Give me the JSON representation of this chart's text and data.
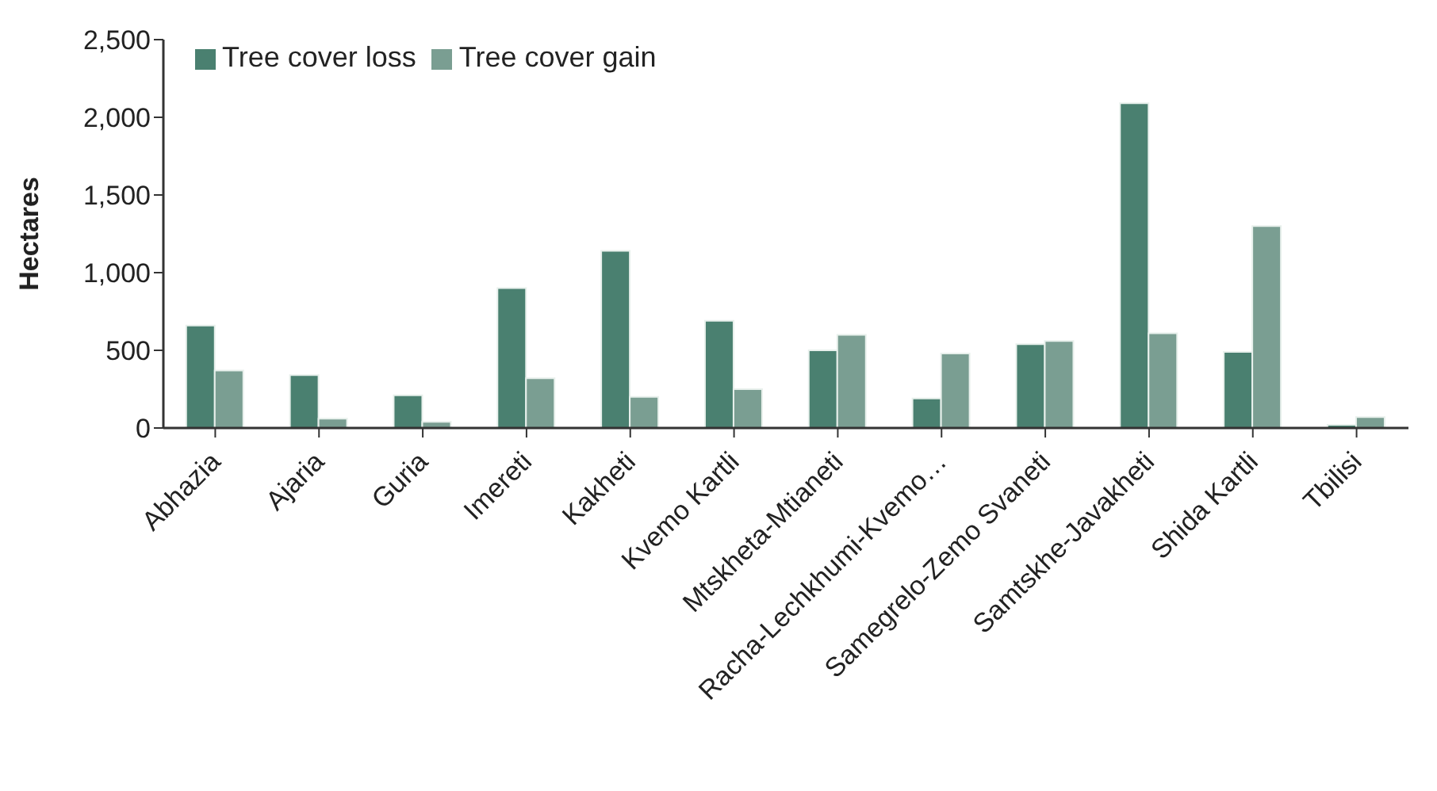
{
  "chart_data": {
    "type": "bar",
    "ylabel": "Hectares",
    "categories": [
      "Abhazia",
      "Ajaria",
      "Guria",
      "Imereti",
      "Kakheti",
      "Kvemo Kartli",
      "Mtskheta-Mtianeti",
      "Racha-Lechkhumi-Kvemo…",
      "Samegrelo-Zemo Svaneti",
      "Samtskhe-Javakheti",
      "Shida Kartli",
      "Tbilisi"
    ],
    "series": [
      {
        "name": "Tree cover loss",
        "color": "#4a8070",
        "values": [
          660,
          340,
          210,
          900,
          1140,
          690,
          500,
          190,
          540,
          2090,
          490,
          20
        ]
      },
      {
        "name": "Tree cover gain",
        "color": "#7a9e92",
        "values": [
          370,
          60,
          40,
          320,
          200,
          250,
          600,
          480,
          560,
          610,
          1300,
          70
        ]
      }
    ],
    "ylim": [
      0,
      2500
    ],
    "yticks": [
      0,
      500,
      {
        "value": 1000,
        "label": "1,000"
      },
      {
        "value": 1500,
        "label": "1,500"
      },
      {
        "value": 2000,
        "label": "2,000"
      },
      {
        "value": 2500,
        "label": "2,500"
      }
    ],
    "grid": false,
    "legend": "top left"
  }
}
